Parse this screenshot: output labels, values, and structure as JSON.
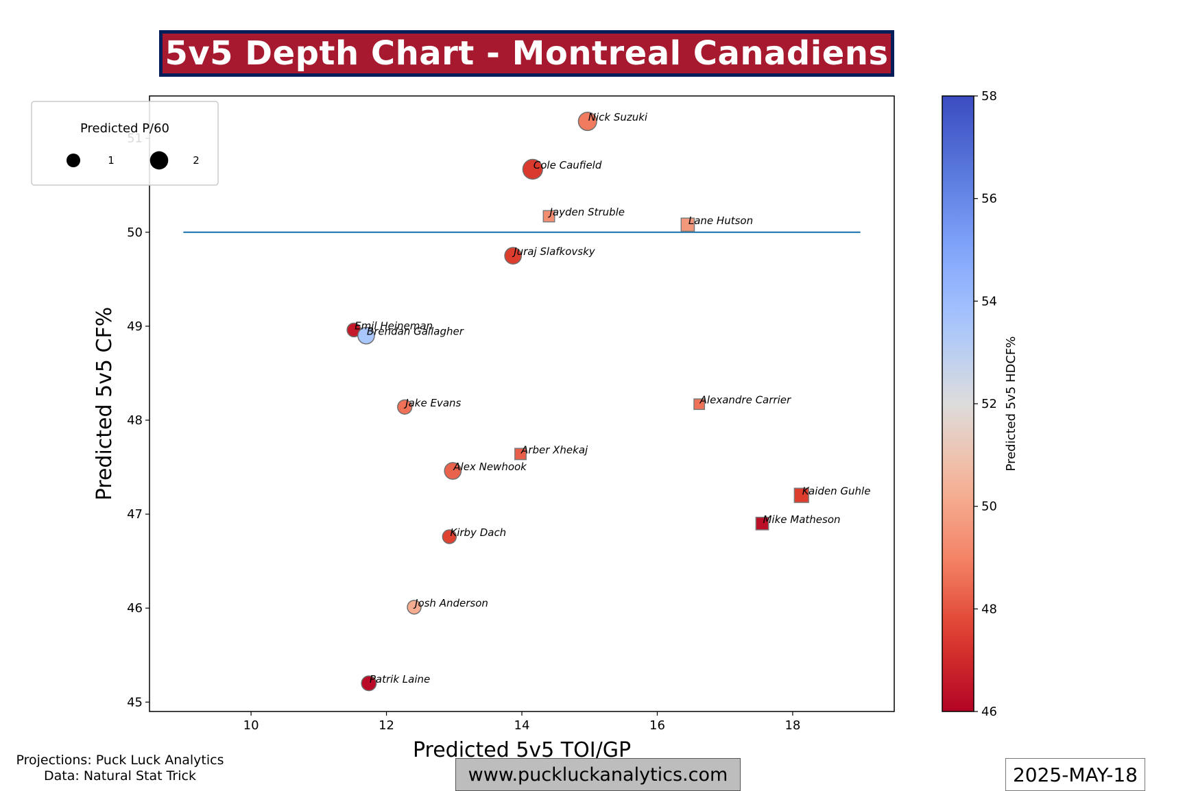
{
  "title": "5v5 Depth Chart - Montreal Canadiens",
  "footer": {
    "projections": "Projections: Puck Luck Analytics",
    "data_source": "Data: Natural Stat Trick",
    "website": "www.puckluckanalytics.com",
    "date": "2025-MAY-18"
  },
  "colors": {
    "title_bg": "#a6192e",
    "title_border": "#041e5a",
    "reference_line": "#1f77b4",
    "colormap": "coolwarm_r"
  },
  "chart_data": {
    "type": "scatter",
    "xlabel": "Predicted 5v5 TOI/GP",
    "ylabel": "Predicted 5v5 CF%",
    "xlim": [
      8.5,
      19.5
    ],
    "ylim": [
      44.9,
      51.45
    ],
    "xticks": [
      10,
      12,
      14,
      16,
      18
    ],
    "yticks": [
      45,
      46,
      47,
      48,
      49,
      50,
      51
    ],
    "grid": false,
    "reference_line": {
      "y": 50,
      "x_start": 9,
      "x_end": 19
    },
    "legend": {
      "title": "Predicted P/60",
      "placement": "top-left",
      "entries": [
        {
          "label": "1",
          "value": 1
        },
        {
          "label": "2",
          "value": 2
        }
      ]
    },
    "colorbar": {
      "label": "Predicted 5v5 HDCF%",
      "min": 46,
      "max": 58,
      "ticks": [
        46,
        48,
        50,
        52,
        54,
        56,
        58
      ]
    },
    "marker_types": {
      "circle": "forward",
      "square": "defense"
    },
    "points": [
      {
        "name": "Nick Suzuki",
        "x": 14.97,
        "y": 51.18,
        "p60": 2.0,
        "hdcf": 48.8,
        "shape": "circle"
      },
      {
        "name": "Cole Caufield",
        "x": 14.16,
        "y": 50.67,
        "p60": 2.4,
        "hdcf": 47.4,
        "shape": "circle"
      },
      {
        "name": "Jayden Struble",
        "x": 14.4,
        "y": 50.17,
        "p60": 0.6,
        "hdcf": 49.3,
        "shape": "square"
      },
      {
        "name": "Lane Hutson",
        "x": 16.45,
        "y": 50.08,
        "p60": 0.9,
        "hdcf": 49.6,
        "shape": "square"
      },
      {
        "name": "Juraj Slafkovsky",
        "x": 13.87,
        "y": 49.75,
        "p60": 1.6,
        "hdcf": 47.5,
        "shape": "circle"
      },
      {
        "name": "Emil Heineman",
        "x": 11.52,
        "y": 48.96,
        "p60": 1.0,
        "hdcf": 46.6,
        "shape": "circle"
      },
      {
        "name": "Brendan Gallagher",
        "x": 11.7,
        "y": 48.9,
        "p60": 1.6,
        "hdcf": 53.5,
        "shape": "circle"
      },
      {
        "name": "Jake Evans",
        "x": 12.27,
        "y": 48.14,
        "p60": 1.1,
        "hdcf": 48.6,
        "shape": "circle"
      },
      {
        "name": "Alexandre Carrier",
        "x": 16.62,
        "y": 48.17,
        "p60": 0.5,
        "hdcf": 48.6,
        "shape": "square"
      },
      {
        "name": "Arber Xhekaj",
        "x": 13.98,
        "y": 47.64,
        "p60": 0.6,
        "hdcf": 48.2,
        "shape": "square"
      },
      {
        "name": "Alex Newhook",
        "x": 12.98,
        "y": 47.46,
        "p60": 1.6,
        "hdcf": 48.3,
        "shape": "circle"
      },
      {
        "name": "Kaiden Guhle",
        "x": 18.13,
        "y": 47.2,
        "p60": 1.1,
        "hdcf": 47.5,
        "shape": "square"
      },
      {
        "name": "Mike Matheson",
        "x": 17.55,
        "y": 46.9,
        "p60": 0.8,
        "hdcf": 46.3,
        "shape": "square"
      },
      {
        "name": "Kirby Dach",
        "x": 12.93,
        "y": 46.76,
        "p60": 1.0,
        "hdcf": 47.6,
        "shape": "circle"
      },
      {
        "name": "Josh Anderson",
        "x": 12.41,
        "y": 46.01,
        "p60": 1.0,
        "hdcf": 50.2,
        "shape": "circle"
      },
      {
        "name": "Patrik Laine",
        "x": 11.74,
        "y": 45.2,
        "p60": 1.2,
        "hdcf": 46.2,
        "shape": "circle"
      }
    ]
  }
}
